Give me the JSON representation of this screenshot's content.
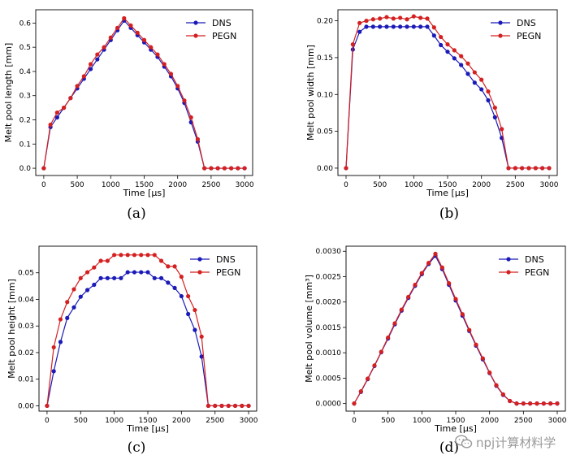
{
  "chart_data": [
    {
      "type": "line",
      "panel_label": "(a)",
      "ylabel": "Melt pool length [mm]",
      "xlabel": "Time [µs]",
      "xlim": [
        -120,
        3120
      ],
      "ylim": [
        -0.03,
        0.655
      ],
      "xticks": [
        0,
        500,
        1000,
        1500,
        2000,
        2500,
        3000
      ],
      "xtick_labels": [
        "0",
        "500",
        "1000",
        "1500",
        "2000",
        "2500",
        "3000"
      ],
      "yticks": [
        0.0,
        0.1,
        0.2,
        0.3,
        0.4,
        0.5,
        0.6
      ],
      "ytick_labels": [
        "0.0",
        "0.1",
        "0.2",
        "0.3",
        "0.4",
        "0.5",
        "0.6"
      ],
      "legend_position": "top-right",
      "x": [
        0,
        100,
        200,
        300,
        400,
        500,
        600,
        700,
        800,
        900,
        1000,
        1100,
        1200,
        1300,
        1400,
        1500,
        1600,
        1700,
        1800,
        1900,
        2000,
        2100,
        2200,
        2300,
        2400,
        2500,
        2600,
        2700,
        2800,
        2900,
        3000
      ],
      "series": [
        {
          "name": "DNS",
          "color": "#1a1ab8",
          "values": [
            0.0,
            0.17,
            0.21,
            0.25,
            0.29,
            0.33,
            0.37,
            0.41,
            0.45,
            0.49,
            0.53,
            0.57,
            0.61,
            0.58,
            0.55,
            0.52,
            0.49,
            0.46,
            0.42,
            0.38,
            0.33,
            0.27,
            0.19,
            0.11,
            0.0,
            0.0,
            0.0,
            0.0,
            0.0,
            0.0,
            0.0
          ]
        },
        {
          "name": "PEGN",
          "color": "#d42020",
          "values": [
            0.0,
            0.18,
            0.23,
            0.25,
            0.29,
            0.34,
            0.38,
            0.43,
            0.47,
            0.5,
            0.54,
            0.58,
            0.62,
            0.59,
            0.56,
            0.53,
            0.5,
            0.47,
            0.43,
            0.39,
            0.34,
            0.28,
            0.21,
            0.12,
            0.0,
            0.0,
            0.0,
            0.0,
            0.0,
            0.0,
            0.0
          ]
        }
      ]
    },
    {
      "type": "line",
      "panel_label": "(b)",
      "ylabel": "Melt pool width [mm]",
      "xlabel": "Time [µs]",
      "xlim": [
        -120,
        3120
      ],
      "ylim": [
        -0.01,
        0.215
      ],
      "xticks": [
        0,
        500,
        1000,
        1500,
        2000,
        2500,
        3000
      ],
      "xtick_labels": [
        "0",
        "500",
        "1000",
        "1500",
        "2000",
        "2500",
        "3000"
      ],
      "yticks": [
        0.0,
        0.05,
        0.1,
        0.15,
        0.2
      ],
      "ytick_labels": [
        "0.00",
        "0.05",
        "0.10",
        "0.15",
        "0.20"
      ],
      "legend_position": "top-right",
      "x": [
        0,
        100,
        200,
        300,
        400,
        500,
        600,
        700,
        800,
        900,
        1000,
        1100,
        1200,
        1300,
        1400,
        1500,
        1600,
        1700,
        1800,
        1900,
        2000,
        2100,
        2200,
        2300,
        2400,
        2500,
        2600,
        2700,
        2800,
        2900,
        3000
      ],
      "series": [
        {
          "name": "DNS",
          "color": "#1a1ab8",
          "values": [
            0.0,
            0.161,
            0.185,
            0.192,
            0.192,
            0.192,
            0.192,
            0.192,
            0.192,
            0.192,
            0.192,
            0.192,
            0.192,
            0.18,
            0.167,
            0.158,
            0.149,
            0.14,
            0.128,
            0.116,
            0.107,
            0.092,
            0.069,
            0.041,
            0.0,
            0.0,
            0.0,
            0.0,
            0.0,
            0.0,
            0.0
          ]
        },
        {
          "name": "PEGN",
          "color": "#d42020",
          "values": [
            0.0,
            0.168,
            0.197,
            0.2,
            0.202,
            0.203,
            0.205,
            0.203,
            0.204,
            0.202,
            0.206,
            0.204,
            0.203,
            0.191,
            0.178,
            0.168,
            0.16,
            0.152,
            0.142,
            0.13,
            0.12,
            0.104,
            0.082,
            0.053,
            0.0,
            0.0,
            0.0,
            0.0,
            0.0,
            0.0,
            0.0
          ]
        }
      ]
    },
    {
      "type": "line",
      "panel_label": "(c)",
      "ylabel": "Melt pool height [mm]",
      "xlabel": "Time [µs]",
      "xlim": [
        -120,
        3120
      ],
      "ylim": [
        -0.002,
        0.06
      ],
      "xticks": [
        0,
        500,
        1000,
        1500,
        2000,
        2500,
        3000
      ],
      "xtick_labels": [
        "0",
        "500",
        "1000",
        "1500",
        "2000",
        "2500",
        "3000"
      ],
      "yticks": [
        0.0,
        0.01,
        0.02,
        0.03,
        0.04,
        0.05
      ],
      "ytick_labels": [
        "0.00",
        "0.01",
        "0.02",
        "0.03",
        "0.04",
        "0.05"
      ],
      "legend_position": "top-right",
      "x": [
        0,
        100,
        200,
        300,
        400,
        500,
        600,
        700,
        800,
        900,
        1000,
        1100,
        1200,
        1300,
        1400,
        1500,
        1600,
        1700,
        1800,
        1900,
        2000,
        2100,
        2200,
        2300,
        2400,
        2500,
        2600,
        2700,
        2800,
        2900,
        3000
      ],
      "series": [
        {
          "name": "DNS",
          "color": "#1a1ab8",
          "values": [
            0.0,
            0.013,
            0.024,
            0.033,
            0.037,
            0.041,
            0.0435,
            0.0455,
            0.048,
            0.048,
            0.048,
            0.048,
            0.0502,
            0.0502,
            0.0502,
            0.0502,
            0.048,
            0.048,
            0.0463,
            0.0443,
            0.0412,
            0.0345,
            0.0285,
            0.0185,
            0.0,
            0.0,
            0.0,
            0.0,
            0.0,
            0.0,
            0.0
          ]
        },
        {
          "name": "PEGN",
          "color": "#d42020",
          "values": [
            0.0,
            0.022,
            0.0325,
            0.039,
            0.0438,
            0.048,
            0.0502,
            0.052,
            0.0545,
            0.0545,
            0.0567,
            0.0567,
            0.0567,
            0.0567,
            0.0567,
            0.0567,
            0.0567,
            0.0545,
            0.0524,
            0.0524,
            0.0485,
            0.0412,
            0.036,
            0.026,
            0.0,
            0.0,
            0.0,
            0.0,
            0.0,
            0.0,
            0.0
          ]
        }
      ]
    },
    {
      "type": "line",
      "panel_label": "(d)",
      "ylabel": "Melt pool volume [mm³]",
      "xlabel": "Time [µs]",
      "xlim": [
        -120,
        3120
      ],
      "ylim": [
        -0.00015,
        0.0031
      ],
      "xticks": [
        0,
        500,
        1000,
        1500,
        2000,
        2500,
        3000
      ],
      "xtick_labels": [
        "0",
        "500",
        "1000",
        "1500",
        "2000",
        "2500",
        "3000"
      ],
      "yticks": [
        0.0,
        0.0005,
        0.001,
        0.0015,
        0.002,
        0.0025,
        0.003
      ],
      "ytick_labels": [
        "0.0000",
        "0.0005",
        "0.0010",
        "0.0015",
        "0.0020",
        "0.0025",
        "0.0030"
      ],
      "legend_position": "top-right",
      "x": [
        0,
        100,
        200,
        300,
        400,
        500,
        600,
        700,
        800,
        900,
        1000,
        1100,
        1200,
        1300,
        1400,
        1500,
        1600,
        1700,
        1800,
        1900,
        2000,
        2100,
        2200,
        2300,
        2400,
        2500,
        2600,
        2700,
        2800,
        2900,
        3000
      ],
      "series": [
        {
          "name": "DNS",
          "color": "#1a1ab8",
          "values": [
            0.0,
            0.00023,
            0.00048,
            0.00074,
            0.00101,
            0.00128,
            0.00156,
            0.00183,
            0.00208,
            0.00232,
            0.00255,
            0.00275,
            0.00291,
            0.00265,
            0.00234,
            0.00203,
            0.00173,
            0.00143,
            0.00114,
            0.00087,
            0.0006,
            0.00035,
            0.00017,
            5e-05,
            0.0,
            0.0,
            0.0,
            0.0,
            0.0,
            0.0,
            0.0
          ]
        },
        {
          "name": "PEGN",
          "color": "#d42020",
          "values": [
            0.0,
            0.00024,
            0.00049,
            0.00075,
            0.00102,
            0.0013,
            0.00158,
            0.00185,
            0.0021,
            0.00234,
            0.00257,
            0.00277,
            0.00295,
            0.00268,
            0.00237,
            0.00206,
            0.00176,
            0.00145,
            0.00116,
            0.00089,
            0.00061,
            0.00036,
            0.00018,
            5e-05,
            0.0,
            0.0,
            0.0,
            0.0,
            0.0,
            0.0,
            0.0
          ]
        }
      ]
    }
  ],
  "watermark": {
    "text": "npj计算材料学"
  }
}
